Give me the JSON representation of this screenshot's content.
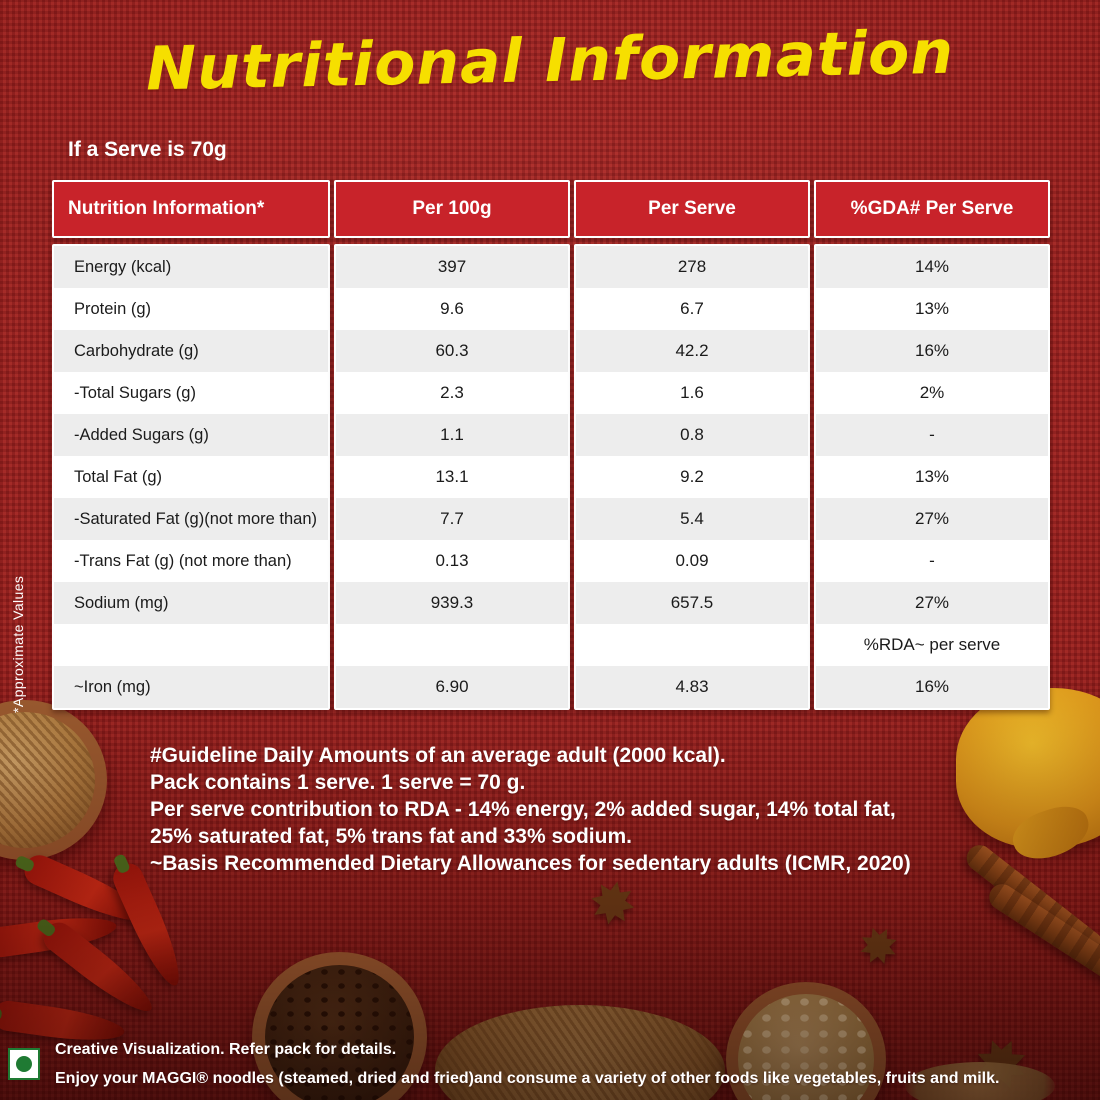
{
  "page": {
    "title": "Nutritional Information",
    "serve_note": "If a Serve is 70g",
    "side_note": "*Approximate Values"
  },
  "table": {
    "headers": [
      "Nutrition Information*",
      "Per 100g",
      "Per Serve",
      "%GDA# Per Serve"
    ],
    "rows": [
      {
        "label": "Energy (kcal)",
        "per100g": "397",
        "per_serve": "278",
        "gda": "14%"
      },
      {
        "label": "Protein (g)",
        "per100g": "9.6",
        "per_serve": "6.7",
        "gda": "13%"
      },
      {
        "label": "Carbohydrate (g)",
        "per100g": "60.3",
        "per_serve": "42.2",
        "gda": "16%"
      },
      {
        "label": "-Total Sugars (g)",
        "per100g": "2.3",
        "per_serve": "1.6",
        "gda": "2%"
      },
      {
        "label": "-Added Sugars (g)",
        "per100g": "1.1",
        "per_serve": "0.8",
        "gda": "-"
      },
      {
        "label": "Total Fat (g)",
        "per100g": "13.1",
        "per_serve": "9.2",
        "gda": "13%"
      },
      {
        "label": "-Saturated Fat (g)(not more than)",
        "per100g": "7.7",
        "per_serve": "5.4",
        "gda": "27%"
      },
      {
        "label": "-Trans Fat (g) (not more than)",
        "per100g": "0.13",
        "per_serve": "0.09",
        "gda": "-"
      },
      {
        "label": "Sodium (mg)",
        "per100g": "939.3",
        "per_serve": "657.5",
        "gda": "27%"
      },
      {
        "label": "",
        "per100g": "",
        "per_serve": "",
        "gda": "%RDA~ per serve"
      },
      {
        "label": "~Iron (mg)",
        "per100g": "6.90",
        "per_serve": "4.83",
        "gda": "16%"
      }
    ]
  },
  "footnotes": [
    "#Guideline Daily Amounts of an average adult (2000 kcal).",
    "Pack contains 1 serve. 1 serve = 70 g.",
    "Per serve contribution to RDA - 14% energy, 2% added sugar, 14% total fat,",
    "25% saturated fat, 5% trans fat and 33% sodium.",
    "~Basis Recommended Dietary Allowances for sedentary adults (ICMR, 2020)"
  ],
  "disclaimer": [
    "Creative Visualization. Refer pack for details.",
    "Enjoy your MAGGI® noodles (steamed, dried and fried)and consume a variety of other foods like vegetables, fruits and milk."
  ],
  "icons": {
    "veg_mark": "vegetarian-green-dot",
    "star_anise": "✸"
  },
  "colors": {
    "background_red": "#a32022",
    "header_red": "#c8232a",
    "title_yellow": "#f6df00",
    "row_alt_gray": "#ededed",
    "veg_green": "#1f7a33"
  }
}
